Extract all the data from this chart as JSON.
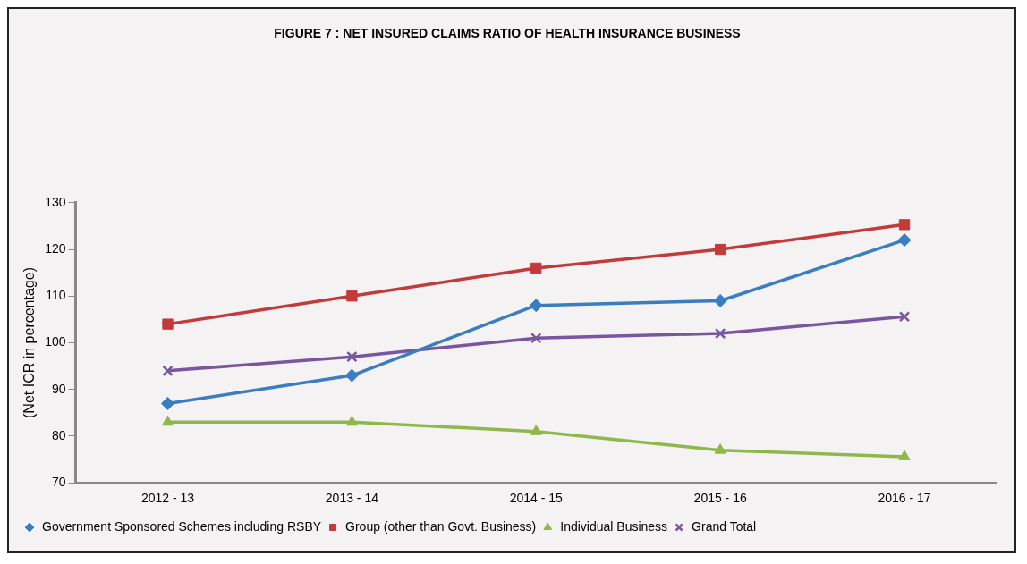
{
  "chart_data": {
    "type": "line",
    "title": "FIGURE 7 : NET INSURED CLAIMS RATIO OF HEALTH INSURANCE BUSINESS",
    "ylabel": "(Net ICR in percentage)",
    "categories": [
      "2012 - 13",
      "2013 - 14",
      "2014 - 15",
      "2015 - 16",
      "2016 - 17"
    ],
    "series": [
      {
        "name": "Government Sponsored Schemes including RSBY",
        "color": "#3a7dc1",
        "marker": "diamond",
        "values": [
          87,
          93,
          108,
          109,
          122
        ]
      },
      {
        "name": "Group (other than Govt. Business)",
        "color": "#c23b3a",
        "marker": "square",
        "values": [
          104,
          110,
          116,
          120,
          125.3
        ]
      },
      {
        "name": "Individual Business",
        "color": "#8fb84a",
        "marker": "triangle",
        "values": [
          83,
          83,
          81,
          77,
          75.6
        ]
      },
      {
        "name": "Grand Total",
        "color": "#7a56a0",
        "marker": "cross",
        "values": [
          94,
          97,
          101,
          102,
          105.6
        ]
      }
    ],
    "ylim": [
      70,
      130
    ],
    "yticks": [
      70,
      80,
      90,
      100,
      110,
      120,
      130
    ],
    "grid": false,
    "legend": "bottom",
    "line_style": "solid"
  }
}
